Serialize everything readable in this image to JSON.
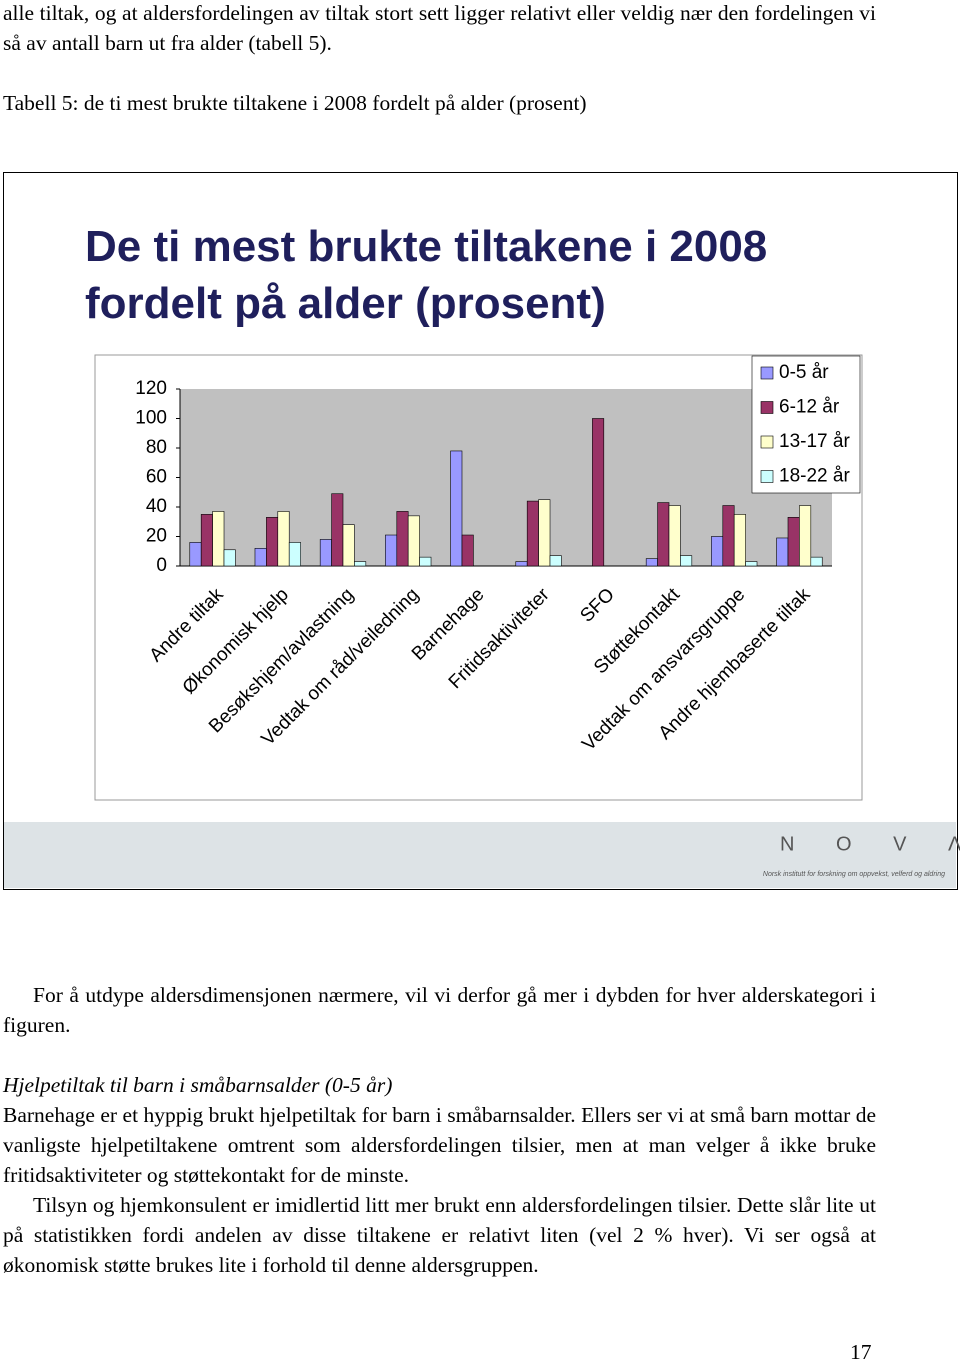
{
  "paragraph_1": "alle tiltak, og at aldersfordelingen av tiltak stort sett ligger relativt eller veldig nær den fordelingen vi så av antall barn ut fra alder (tabell 5).",
  "caption": "Tabell 5: de ti mest brukte tiltakene i 2008 fordelt på alder (prosent)",
  "chart_data": {
    "type": "bar",
    "title": "De ti mest brukte tiltakene i 2008 fordelt på alder (prosent)",
    "categories": [
      "Andre tiltak",
      "Økonomisk hjelp",
      "Besøkshjem/avlastning",
      "Vedtak om råd/veiledning",
      "Barnehage",
      "Fritidsaktiviteter",
      "SFO",
      "Støttekontakt",
      "Vedtak om ansvarsgruppe",
      "Andre hjembaserte tiltak"
    ],
    "series": [
      {
        "name": "0-5 år",
        "color": "#9999ff",
        "values": [
          16,
          12,
          18,
          21,
          78,
          3,
          0,
          5,
          20,
          19
        ]
      },
      {
        "name": "6-12 år",
        "color": "#993366",
        "values": [
          35,
          33,
          49,
          37,
          21,
          44,
          100,
          43,
          41,
          33
        ]
      },
      {
        "name": "13-17 år",
        "color": "#ffffcc",
        "values": [
          37,
          37,
          28,
          34,
          0,
          45,
          0,
          41,
          35,
          41
        ]
      },
      {
        "name": "18-22 år",
        "color": "#ccffff",
        "values": [
          11,
          16,
          3,
          6,
          0,
          7,
          0,
          7,
          3,
          6
        ]
      }
    ],
    "ylim": [
      0,
      120
    ],
    "yticks": [
      0,
      20,
      40,
      60,
      80,
      100,
      120
    ],
    "legend": "top-right",
    "plot_background": "#c0c0c0"
  },
  "logo": "N O V Λ",
  "logo_subtitle": "Norsk institutt for forskning om oppvekst, velferd og aldring",
  "paragraph_2": "For å utdype aldersdimensjonen nærmere, vil vi derfor gå mer i dybden for hver alderskategori i figuren.",
  "heading": "Hjelpetiltak til barn i småbarnsalder (0-5 år)",
  "paragraph_3": "Barnehage er et hyppig brukt hjelpetiltak for barn i småbarnsalder. Ellers ser vi at små barn mottar de vanligste hjelpetiltakene omtrent som aldersfordelingen tilsier, men at man velger å ikke bruke fritidsaktiviteter og støttekontakt for de minste.",
  "paragraph_4": "Tilsyn og hjemkonsulent er imidlertid litt mer brukt enn aldersfordelingen tilsier. Dette slår lite ut på statistikken fordi andelen av disse tiltakene er relativt liten (vel 2 % hver). Vi ser også at økonomisk støtte brukes lite i forhold til denne aldersgruppen.",
  "page_number": "17"
}
